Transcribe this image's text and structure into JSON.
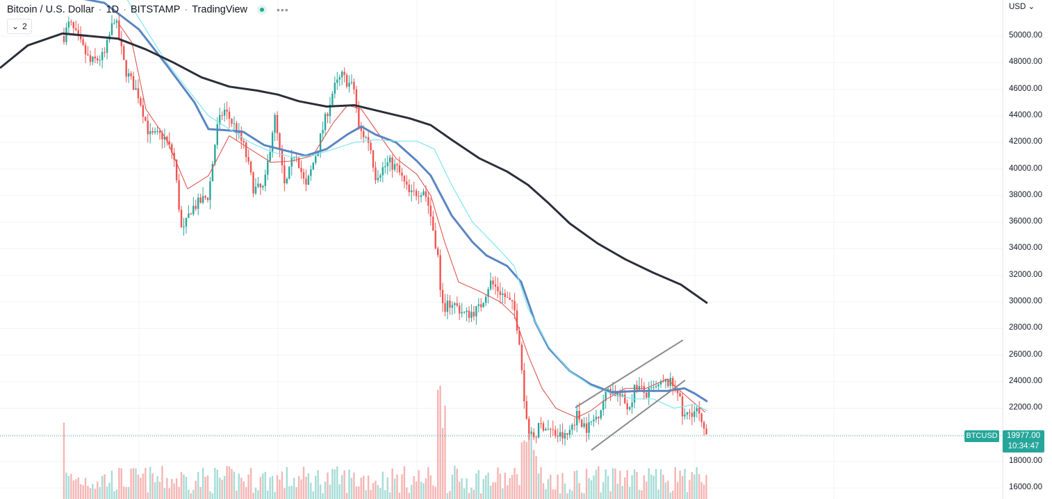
{
  "header": {
    "symbol": "Bitcoin / U.S. Dollar",
    "interval": "1D",
    "exchange": "BITSTAMP",
    "platform": "TradingView",
    "more_icon": "more-dots-icon",
    "status_icon": "market-status-dot-icon"
  },
  "indicators_toggle": {
    "count": "2",
    "icon": "chevron-down-icon"
  },
  "currency_menu": {
    "label": "USD",
    "icon": "chevron-down-icon"
  },
  "price_tag": {
    "symbol": "BTCUSD",
    "price": "19977.00",
    "countdown": "10:34:47"
  },
  "colors": {
    "up": "#26a69a",
    "down": "#ef5350",
    "ma_short": "#e0564f",
    "ma_mid": "#5b85c1",
    "ma_light": "#7ee6ee",
    "ma_long": "#2a2e39",
    "channel": "#8a8a8a"
  },
  "chart_data": {
    "type": "candlestick",
    "symbol": "BTCUSD",
    "interval": "1D",
    "y_axis": {
      "ticks": [
        16000,
        18000,
        20000,
        22000,
        24000,
        26000,
        28000,
        30000,
        32000,
        34000,
        36000,
        38000,
        40000,
        42000,
        44000,
        46000,
        48000,
        50000
      ],
      "tick_labels": [
        "16000.00",
        "18000.00",
        "22000.00",
        "24000.00",
        "26000.00",
        "28000.00",
        "30000.00",
        "32000.00",
        "34000.00",
        "36000.00",
        "38000.00",
        "40000.00",
        "42000.00",
        "44000.00",
        "46000.00",
        "48000.00",
        "50000.00"
      ],
      "range": [
        15200,
        52700
      ]
    },
    "last_price": 19977.0,
    "series": [
      {
        "name": "MA short",
        "points": [
          [
            170,
            51000
          ],
          [
            190,
            49500
          ],
          [
            210,
            44500
          ],
          [
            240,
            42200
          ],
          [
            270,
            38500
          ],
          [
            300,
            39500
          ],
          [
            330,
            42500
          ],
          [
            360,
            41500
          ],
          [
            390,
            40500
          ],
          [
            420,
            40600
          ],
          [
            450,
            41000
          ],
          [
            480,
            43500
          ],
          [
            500,
            44800
          ],
          [
            520,
            44500
          ],
          [
            540,
            43000
          ],
          [
            570,
            40800
          ],
          [
            600,
            39600
          ],
          [
            620,
            38000
          ],
          [
            640,
            34500
          ],
          [
            660,
            31500
          ],
          [
            690,
            30800
          ],
          [
            720,
            30000
          ],
          [
            740,
            29000
          ],
          [
            760,
            26000
          ],
          [
            780,
            23500
          ],
          [
            800,
            22000
          ],
          [
            830,
            21300
          ],
          [
            850,
            21800
          ],
          [
            870,
            22600
          ],
          [
            900,
            23500
          ],
          [
            930,
            23500
          ],
          [
            960,
            24200
          ],
          [
            990,
            22800
          ],
          [
            1015,
            21700
          ]
        ]
      },
      {
        "name": "MA mid",
        "points": [
          [
            100,
            53000
          ],
          [
            150,
            52500
          ],
          [
            200,
            50500
          ],
          [
            240,
            47800
          ],
          [
            280,
            45000
          ],
          [
            300,
            43000
          ],
          [
            330,
            42900
          ],
          [
            350,
            42800
          ],
          [
            380,
            41800
          ],
          [
            410,
            41400
          ],
          [
            440,
            41000
          ],
          [
            470,
            41500
          ],
          [
            500,
            42600
          ],
          [
            520,
            43200
          ],
          [
            540,
            42600
          ],
          [
            570,
            42000
          ],
          [
            600,
            40600
          ],
          [
            620,
            39500
          ],
          [
            650,
            36500
          ],
          [
            680,
            34500
          ],
          [
            700,
            33500
          ],
          [
            730,
            32700
          ],
          [
            750,
            31500
          ],
          [
            770,
            28500
          ],
          [
            790,
            26500
          ],
          [
            820,
            24800
          ],
          [
            850,
            23800
          ],
          [
            880,
            23200
          ],
          [
            920,
            23300
          ],
          [
            960,
            23300
          ],
          [
            985,
            23500
          ],
          [
            1000,
            23100
          ],
          [
            1018,
            22500
          ]
        ]
      },
      {
        "name": "MA light",
        "points": [
          [
            180,
            53000
          ],
          [
            210,
            50500
          ],
          [
            240,
            48000
          ],
          [
            270,
            46000
          ],
          [
            300,
            44000
          ],
          [
            330,
            43000
          ],
          [
            360,
            42000
          ],
          [
            390,
            41300
          ],
          [
            420,
            40900
          ],
          [
            450,
            41000
          ],
          [
            480,
            41500
          ],
          [
            510,
            42000
          ],
          [
            540,
            42200
          ],
          [
            570,
            42100
          ],
          [
            600,
            42100
          ],
          [
            625,
            41500
          ],
          [
            650,
            38800
          ],
          [
            680,
            36000
          ],
          [
            710,
            34400
          ],
          [
            740,
            32700
          ],
          [
            760,
            29500
          ],
          [
            790,
            26600
          ],
          [
            820,
            24800
          ],
          [
            850,
            23700
          ],
          [
            880,
            23100
          ],
          [
            910,
            22700
          ],
          [
            940,
            22700
          ],
          [
            970,
            22000
          ],
          [
            1000,
            22300
          ],
          [
            1018,
            21800
          ]
        ]
      },
      {
        "name": "MA long",
        "points": [
          [
            0,
            47600
          ],
          [
            40,
            49300
          ],
          [
            90,
            50200
          ],
          [
            130,
            50000
          ],
          [
            170,
            49800
          ],
          [
            210,
            49000
          ],
          [
            250,
            48000
          ],
          [
            290,
            46900
          ],
          [
            330,
            46200
          ],
          [
            370,
            45900
          ],
          [
            400,
            45600
          ],
          [
            430,
            45100
          ],
          [
            470,
            44700
          ],
          [
            510,
            44800
          ],
          [
            550,
            44300
          ],
          [
            590,
            43800
          ],
          [
            620,
            43300
          ],
          [
            650,
            42200
          ],
          [
            690,
            40800
          ],
          [
            730,
            39800
          ],
          [
            760,
            38800
          ],
          [
            790,
            37400
          ],
          [
            820,
            35900
          ],
          [
            860,
            34400
          ],
          [
            900,
            33200
          ],
          [
            940,
            32200
          ],
          [
            980,
            31300
          ],
          [
            1018,
            29900
          ]
        ]
      }
    ]
  }
}
